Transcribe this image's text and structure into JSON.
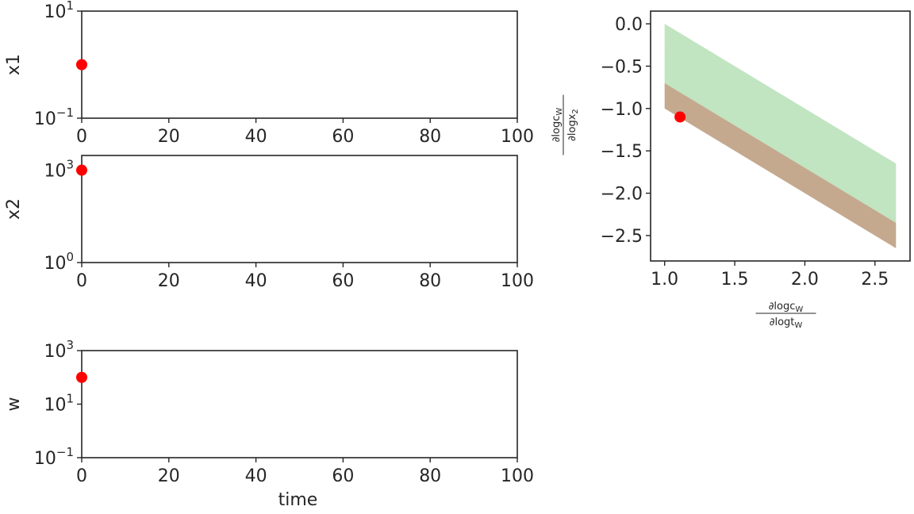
{
  "chart_data": [
    {
      "id": "x1",
      "type": "scatter",
      "ylabel": "x1",
      "xlabel": "",
      "xlim": [
        0,
        100
      ],
      "x_ticks": [
        "0",
        "20",
        "40",
        "60",
        "80",
        "100"
      ],
      "yscale": "log",
      "ylim": [
        0.1,
        10
      ],
      "y_ticks": [
        {
          "base": "10",
          "exp": "1"
        },
        {
          "base": "10",
          "exp": "−1"
        }
      ],
      "points": [
        {
          "x": 0,
          "y": 1
        }
      ],
      "marker_color": "#ff0000"
    },
    {
      "id": "x2",
      "type": "scatter",
      "ylabel": "x2",
      "xlabel": "",
      "xlim": [
        0,
        100
      ],
      "x_ticks": [
        "0",
        "20",
        "40",
        "60",
        "80",
        "100"
      ],
      "yscale": "log",
      "ylim": [
        1,
        3000
      ],
      "y_ticks": [
        {
          "base": "10",
          "exp": "3"
        },
        {
          "base": "10",
          "exp": "0"
        }
      ],
      "points": [
        {
          "x": 0,
          "y": 1000
        }
      ],
      "marker_color": "#ff0000"
    },
    {
      "id": "w",
      "type": "scatter",
      "ylabel": "w",
      "xlabel": "time",
      "xlim": [
        0,
        100
      ],
      "x_ticks": [
        "0",
        "20",
        "40",
        "60",
        "80",
        "100"
      ],
      "yscale": "log",
      "ylim": [
        0.1,
        1000
      ],
      "y_ticks": [
        {
          "base": "10",
          "exp": "3"
        },
        {
          "base": "10",
          "exp": "1"
        },
        {
          "base": "10",
          "exp": "−1"
        }
      ],
      "points": [
        {
          "x": 0,
          "y": 100
        }
      ],
      "marker_color": "#ff0000"
    },
    {
      "id": "elasticity",
      "type": "area",
      "xlabel": {
        "num": "∂logc",
        "num_sub": "W",
        "den": "∂logt",
        "den_sub": "W"
      },
      "ylabel": {
        "num": "∂logc",
        "num_sub": "W",
        "den": "∂logx",
        "den_sub": "2"
      },
      "xlim": [
        0.9,
        2.75
      ],
      "ylim": [
        -2.8,
        0.15
      ],
      "x_ticks": [
        "1.0",
        "1.5",
        "2.0",
        "2.5"
      ],
      "y_ticks": [
        "0.0",
        "−0.5",
        "−1.0",
        "−1.5",
        "−2.0",
        "−2.5"
      ],
      "regions": [
        {
          "x": [
            1.0,
            2.65
          ],
          "upper": [
            0.0,
            -1.65
          ],
          "lower": [
            -0.7,
            -2.35
          ],
          "color": "#c1e4c1"
        },
        {
          "x": [
            1.0,
            2.65
          ],
          "upper": [
            -0.7,
            -2.35
          ],
          "lower": [
            -1.0,
            -2.65
          ],
          "color": "#c4a98f"
        }
      ],
      "points": [
        {
          "x": 1.11,
          "y": -1.1
        }
      ],
      "marker_color": "#ff0000"
    }
  ]
}
